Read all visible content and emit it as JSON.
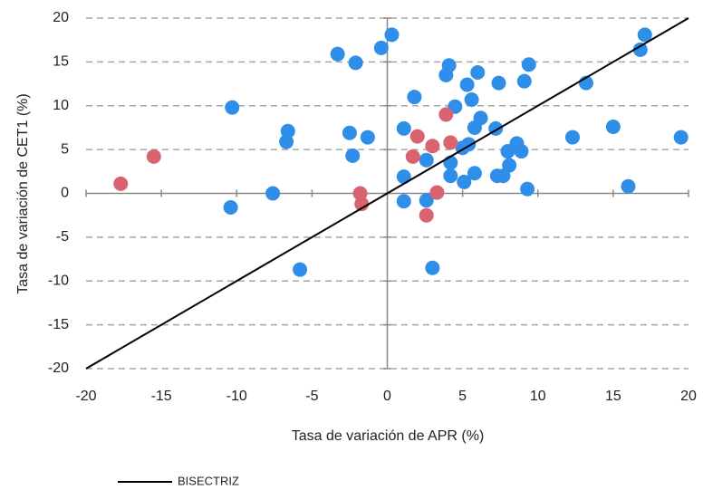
{
  "chart_data": {
    "type": "scatter",
    "x_label": "Tasa de variación de APR (%)",
    "y_label": "Tasa de variación de CET1 (%)",
    "xlim": [
      -20,
      20
    ],
    "ylim": [
      -20,
      20
    ],
    "xticks": [
      -20,
      -15,
      -10,
      -5,
      0,
      5,
      10,
      15,
      20
    ],
    "yticks": [
      -20,
      -15,
      -10,
      -5,
      0,
      5,
      10,
      15,
      20
    ],
    "grid": true,
    "series": [
      {
        "color": "#2e8ee8",
        "x": [
          0.3,
          -0.4,
          -3.3,
          -2.1,
          -10.3,
          -6.6,
          -6.7,
          -2.5,
          -1.3,
          -2.3,
          -7.6,
          -10.4,
          -5.8,
          1.8,
          1.1,
          1.1,
          1.1,
          2.6,
          2.6,
          3.0,
          4.1,
          3.9,
          5.3,
          6.0,
          7.4,
          9.4,
          9.1,
          4.5,
          5.6,
          6.2,
          5.8,
          7.2,
          4.2,
          4.2,
          5.0,
          5.4,
          5.8,
          5.1,
          7.3,
          7.7,
          8.1,
          8.0,
          8.6,
          8.9,
          9.3,
          12.3,
          13.2,
          15.0,
          16.0,
          16.8,
          17.1,
          19.5
        ],
        "values": [
          18.1,
          16.6,
          15.9,
          14.9,
          9.8,
          7.1,
          5.9,
          6.9,
          6.4,
          4.3,
          0,
          -1.6,
          -8.7,
          11.0,
          7.4,
          1.9,
          -0.9,
          3.8,
          -0.8,
          -8.5,
          14.6,
          13.5,
          12.4,
          13.8,
          12.6,
          14.7,
          12.8,
          9.9,
          10.7,
          8.6,
          7.5,
          7.4,
          3.5,
          2.0,
          5.2,
          5.6,
          2.3,
          1.3,
          2.0,
          2.0,
          3.2,
          4.8,
          5.7,
          4.8,
          0.5,
          6.4,
          12.6,
          7.6,
          0.8,
          16.4,
          18.1,
          6.4
        ]
      },
      {
        "color": "#d9636f",
        "x": [
          -17.7,
          -15.5,
          -1.8,
          -1.7,
          1.7,
          2.0,
          3.0,
          3.9,
          4.2,
          3.3,
          2.6
        ],
        "values": [
          1.1,
          4.2,
          0,
          -1.2,
          4.2,
          6.5,
          5.4,
          9.0,
          5.8,
          0.1,
          -2.5
        ]
      }
    ],
    "reference_line": {
      "name": "BISECTRIZ",
      "color": "#000000",
      "x": [
        -20,
        20
      ],
      "values": [
        -20,
        20
      ]
    }
  }
}
